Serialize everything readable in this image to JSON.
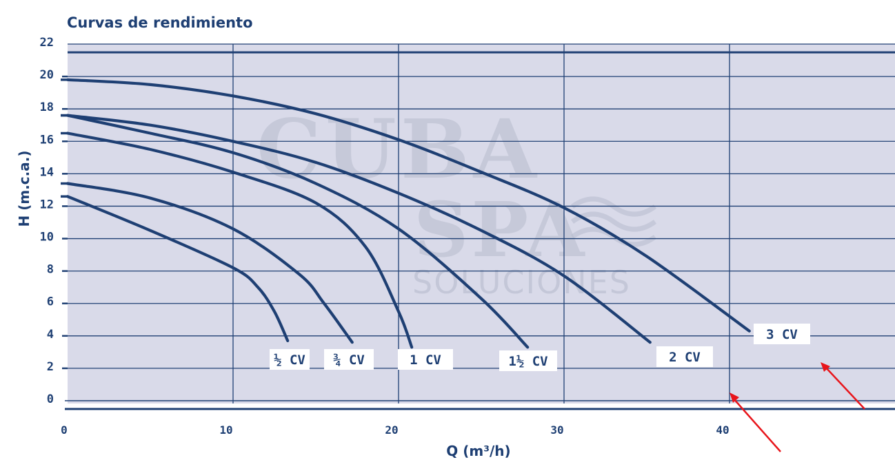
{
  "chart_data": {
    "type": "line",
    "title": "Curvas de rendimiento",
    "xlabel": "Q (m³/h)",
    "ylabel": "H (m.c.a.)",
    "xlim": [
      0,
      50
    ],
    "ylim": [
      0,
      22
    ],
    "x_ticks": [
      0,
      10,
      20,
      30,
      40
    ],
    "y_ticks": [
      0,
      2,
      4,
      6,
      8,
      10,
      12,
      14,
      16,
      18,
      20,
      22
    ],
    "grid": true,
    "watermark": [
      "CUBA",
      "SPA",
      "SOLUCIONES"
    ],
    "colors": {
      "background": "#d9dae9",
      "curve": "#1e3f73",
      "grid": "#1e3f73",
      "annotation_arrow": "#e8151b"
    },
    "series": [
      {
        "name": "½ CV",
        "x": [
          0,
          5,
          10,
          11.5,
          12.5,
          13.3
        ],
        "y": [
          12.6,
          10.5,
          8.2,
          7.0,
          5.5,
          3.7
        ]
      },
      {
        "name": "¾ CV",
        "x": [
          0,
          5,
          10,
          14,
          15.5,
          17.2
        ],
        "y": [
          13.4,
          12.5,
          10.6,
          7.8,
          6.0,
          3.6
        ]
      },
      {
        "name": "1 CV",
        "x": [
          0,
          5,
          10,
          15,
          18,
          20,
          20.8
        ],
        "y": [
          16.5,
          15.5,
          14.1,
          12.2,
          9.5,
          5.5,
          3.3
        ]
      },
      {
        "name": "1½ CV",
        "x": [
          0,
          5,
          10,
          15,
          20,
          25,
          27.8
        ],
        "y": [
          17.6,
          16.5,
          15.3,
          13.4,
          10.6,
          6.3,
          3.3
        ]
      },
      {
        "name": "2 CV",
        "x": [
          0,
          5,
          10,
          15,
          20,
          25,
          30,
          35.2
        ],
        "y": [
          17.6,
          17.0,
          16.0,
          14.7,
          12.8,
          10.5,
          7.7,
          3.6
        ]
      },
      {
        "name": "3 CV",
        "x": [
          0,
          5,
          10,
          15,
          20,
          25,
          30,
          35,
          41.2
        ],
        "y": [
          19.8,
          19.5,
          18.8,
          17.7,
          16.1,
          14.1,
          11.9,
          8.9,
          4.3
        ]
      }
    ]
  }
}
